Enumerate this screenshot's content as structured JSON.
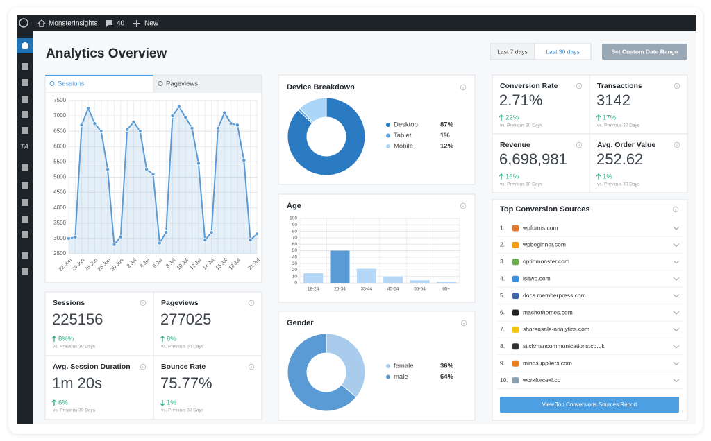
{
  "admin_bar": {
    "site_name": "MonsterInsights",
    "comments": "40",
    "new": "New"
  },
  "admin_menu": {
    "ta_label": "TA"
  },
  "header": {
    "title": "Analytics Overview",
    "range_buttons": [
      "Last 7 days",
      "Last 30 days"
    ],
    "active_range": 1,
    "custom_range": "Set Custom Date Range"
  },
  "sessions_chart": {
    "type": "line",
    "tabs": [
      "Sessions",
      "Pageviews"
    ],
    "active_tab": 0,
    "categories": [
      "22 Jun",
      null,
      "24 Jun",
      null,
      "26 Jun",
      null,
      "28 Jun",
      null,
      "30 Jun",
      null,
      "2 Jul",
      null,
      "4 Jul",
      null,
      "6 Jul",
      null,
      "8 Jul",
      null,
      "10 Jul",
      null,
      "12 Jul",
      null,
      "14 Jul",
      null,
      "16 Jul",
      null,
      "18 Jul",
      null,
      null,
      "21 Jul"
    ],
    "values": [
      3000,
      3050,
      6700,
      7250,
      6750,
      6500,
      5250,
      2800,
      3050,
      6550,
      6800,
      6500,
      5250,
      5100,
      2850,
      3200,
      7000,
      7300,
      6950,
      6600,
      5450,
      2950,
      3200,
      6600,
      7100,
      6750,
      6700,
      5550,
      2950,
      3150
    ],
    "color": "#5b9bd5",
    "ylim": [
      2500,
      7500
    ],
    "yticks": [
      2500,
      3000,
      3500,
      4000,
      4500,
      5000,
      5500,
      6000,
      6500,
      7000,
      7500
    ],
    "grid": true
  },
  "site_kpis": [
    {
      "label": "Sessions",
      "value": "225156",
      "change": "8%%",
      "trend": "up",
      "note": "vs. Previous 30 Days"
    },
    {
      "label": "Pageviews",
      "value": "277025",
      "change": "8%",
      "trend": "up",
      "note": "vs. Previous 30 Days"
    },
    {
      "label": "Avg. Session Duration",
      "value": "1m 20s",
      "change": "6%",
      "trend": "up",
      "note": "vs. Previous 30 Days"
    },
    {
      "label": "Bounce Rate",
      "value": "75.77%",
      "change": "1%",
      "trend": "down",
      "note": "vs. Previous 30 Days"
    }
  ],
  "device_breakdown": {
    "type": "pie",
    "title": "Device Breakdown",
    "categories": [
      "Desktop",
      "Tablet",
      "Mobile"
    ],
    "values": [
      87,
      1,
      12
    ],
    "value_labels": [
      "87%",
      "1%",
      "12%"
    ],
    "colors": [
      "#2b7bc3",
      "#5ba4e0",
      "#acd6f7"
    ]
  },
  "age": {
    "type": "bar",
    "title": "Age",
    "categories": [
      "18-24",
      "25-34",
      "35-44",
      "45-54",
      "55-64",
      "65+"
    ],
    "values": [
      15,
      50,
      22,
      10,
      4,
      2
    ],
    "colors": [
      "#b3d7f4",
      "#5b9bd5",
      "#b3d7f4",
      "#b3d7f4",
      "#b3d7f4",
      "#b3d7f4"
    ],
    "ylim": [
      0,
      100
    ],
    "yticks": [
      0,
      10,
      20,
      30,
      40,
      50,
      60,
      70,
      80,
      90,
      100
    ],
    "grid": true
  },
  "gender": {
    "type": "pie",
    "title": "Gender",
    "categories": [
      "female",
      "male"
    ],
    "values": [
      36,
      64
    ],
    "value_labels": [
      "36%",
      "64%"
    ],
    "colors": [
      "#a9cbec",
      "#5b9bd5"
    ]
  },
  "ecommerce_kpis": [
    {
      "label": "Conversion Rate",
      "value": "2.71%",
      "change": "22%",
      "trend": "up",
      "note": "vs. Previous 30 Days"
    },
    {
      "label": "Transactions",
      "value": "3142",
      "change": "17%",
      "trend": "up",
      "note": "vs. Previous 30 Days"
    },
    {
      "label": "Revenue",
      "value": "6,698,981",
      "change": "16%",
      "trend": "up",
      "note": "vs. Previous 30 Days"
    },
    {
      "label": "Avg. Order Value",
      "value": "252.62",
      "change": "1%",
      "trend": "up",
      "note": "vs. Previous 30 Days"
    }
  ],
  "conversion_sources": {
    "title": "Top Conversion Sources",
    "rows": [
      {
        "rank": "1.",
        "domain": "wpforms.com"
      },
      {
        "rank": "2.",
        "domain": "wpbeginner.com"
      },
      {
        "rank": "3.",
        "domain": "optinmonster.com"
      },
      {
        "rank": "4.",
        "domain": "isitwp.com"
      },
      {
        "rank": "5.",
        "domain": "docs.memberpress.com"
      },
      {
        "rank": "6.",
        "domain": "machothemes.com"
      },
      {
        "rank": "7.",
        "domain": "shareasale-analytics.com"
      },
      {
        "rank": "8.",
        "domain": "stickmancommunications.co.uk"
      },
      {
        "rank": "9.",
        "domain": "mindsuppliers.com"
      },
      {
        "rank": "10.",
        "domain": "workforcexl.co"
      }
    ],
    "button": "View Top Conversions Sources Report"
  }
}
